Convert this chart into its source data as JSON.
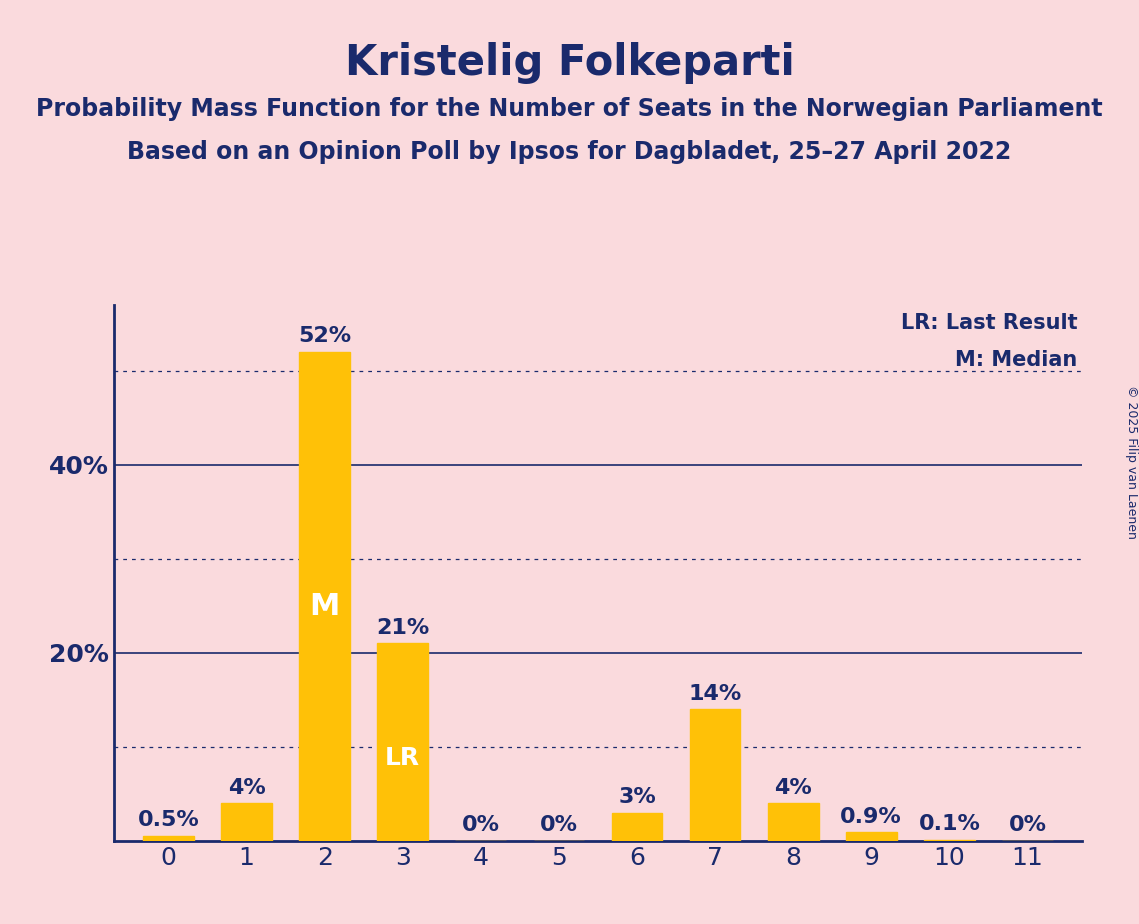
{
  "title": "Kristelig Folkeparti",
  "subtitle1": "Probability Mass Function for the Number of Seats in the Norwegian Parliament",
  "subtitle2": "Based on an Opinion Poll by Ipsos for Dagbladet, 25–27 April 2022",
  "categories": [
    0,
    1,
    2,
    3,
    4,
    5,
    6,
    7,
    8,
    9,
    10,
    11
  ],
  "values": [
    0.5,
    4.0,
    52.0,
    21.0,
    0.0,
    0.0,
    3.0,
    14.0,
    4.0,
    0.9,
    0.1,
    0.0
  ],
  "bar_color": "#FFC107",
  "background_color": "#FADADD",
  "title_color": "#1a2a6c",
  "subtitle_color": "#1a2a6c",
  "axis_color": "#1a2a6c",
  "tick_color": "#1a2a6c",
  "label_color": "#1a2a6c",
  "grid_color": "#1a2a6c",
  "median_bar": 2,
  "last_result_bar": 3,
  "median_label": "M",
  "last_result_label": "LR",
  "legend_lr": "LR: Last Result",
  "legend_m": "M: Median",
  "copyright": "© 2025 Filip van Laenen",
  "ylim": [
    0,
    57
  ],
  "yticks": [
    0,
    20,
    40
  ],
  "ytick_labels": [
    "",
    "20%",
    "40%"
  ],
  "dotted_lines": [
    10,
    30,
    50
  ],
  "solid_lines": [
    20,
    40
  ],
  "value_label_fontsize": 16,
  "title_fontsize": 30,
  "subtitle_fontsize": 17,
  "tick_fontsize": 18,
  "legend_fontsize": 15,
  "copyright_fontsize": 9,
  "bar_width": 0.65
}
